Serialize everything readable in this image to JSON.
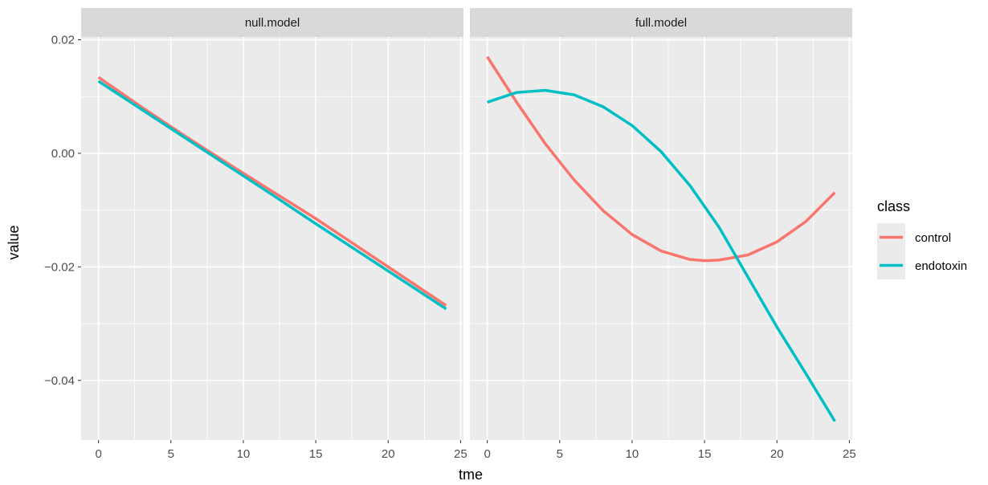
{
  "chart_data": {
    "type": "line",
    "xlabel": "tme",
    "ylabel": "value",
    "xlim": [
      -1.2,
      25.2
    ],
    "ylim": [
      -0.0505,
      0.0205
    ],
    "x_ticks": [
      0,
      5,
      10,
      15,
      20,
      25
    ],
    "x_tick_labels": [
      "0",
      "5",
      "10",
      "15",
      "20",
      "25"
    ],
    "y_ticks": [
      0.02,
      0.0,
      -0.02,
      -0.04
    ],
    "y_tick_labels": [
      "0.02",
      "0.00",
      "−0.02",
      "−0.04"
    ],
    "grid": true,
    "legend": {
      "title": "class",
      "position": "right",
      "entries": [
        {
          "label": "control",
          "color": "#F8766D"
        },
        {
          "label": "endotoxin",
          "color": "#00BFC4"
        }
      ]
    },
    "panels": [
      {
        "title": "null.model",
        "series": [
          {
            "name": "control",
            "color": "#F8766D",
            "x": [
              0,
              3,
              6,
              9,
              12,
              15,
              18,
              21,
              24
            ],
            "y": [
              0.0134,
              0.0081,
              0.003,
              -0.0019,
              -0.0067,
              -0.0115,
              -0.0166,
              -0.0217,
              -0.0268
            ]
          },
          {
            "name": "endotoxin",
            "color": "#00BFC4",
            "x": [
              0,
              3,
              6,
              9,
              12,
              15,
              18,
              21,
              24
            ],
            "y": [
              0.0127,
              0.0077,
              0.0027,
              -0.0023,
              -0.0073,
              -0.0124,
              -0.0174,
              -0.0224,
              -0.0274
            ]
          }
        ]
      },
      {
        "title": "full.model",
        "series": [
          {
            "name": "control",
            "color": "#F8766D",
            "x": [
              0,
              2,
              4,
              6,
              8,
              10,
              12,
              14,
              15,
              16,
              18,
              20,
              22,
              24
            ],
            "y": [
              0.017,
              0.0091,
              0.0017,
              -0.0047,
              -0.0101,
              -0.0143,
              -0.0172,
              -0.0187,
              -0.0189,
              -0.0188,
              -0.0179,
              -0.0156,
              -0.012,
              -0.0069
            ]
          },
          {
            "name": "endotoxin",
            "color": "#00BFC4",
            "x": [
              0,
              2,
              4,
              6,
              8,
              10,
              12,
              14,
              16,
              18,
              20,
              22,
              24
            ],
            "y": [
              0.009,
              0.0107,
              0.0111,
              0.0103,
              0.0082,
              0.0049,
              0.0003,
              -0.0057,
              -0.013,
              -0.0218,
              -0.0306,
              -0.0388,
              -0.0472
            ]
          }
        ]
      }
    ]
  }
}
